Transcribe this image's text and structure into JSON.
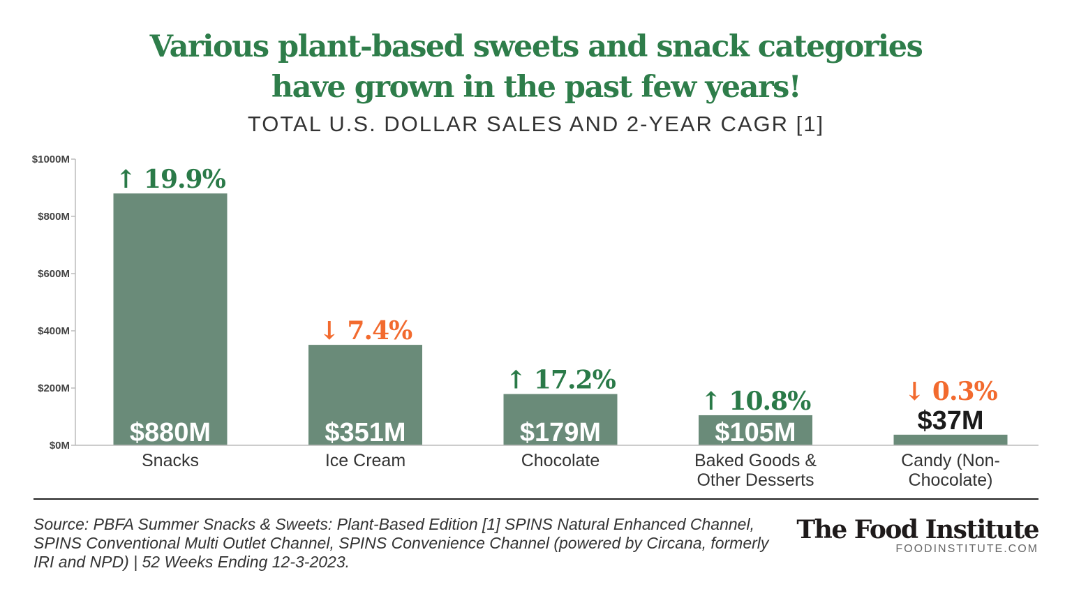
{
  "header": {
    "title_line1": "Various plant-based sweets and snack categories",
    "title_line2": "have grown in the past few years!",
    "subtitle": "TOTAL U.S. DOLLAR SALES AND 2-YEAR CAGR [1]"
  },
  "chart_data": {
    "type": "bar",
    "title": "Various plant-based sweets and snack categories have grown in the past few years!",
    "subtitle": "TOTAL U.S. DOLLAR SALES AND 2-YEAR CAGR [1]",
    "categories": [
      [
        "Snacks"
      ],
      [
        "Ice Cream"
      ],
      [
        "Chocolate"
      ],
      [
        "Baked Goods &",
        "Other Desserts"
      ],
      [
        "Candy (Non-",
        "Chocolate)"
      ]
    ],
    "values": [
      880,
      351,
      179,
      105,
      37
    ],
    "value_labels": [
      "$880M",
      "$351M",
      "$179M",
      "$105M",
      "$37M"
    ],
    "cagr": [
      {
        "direction": "up",
        "label": "↑ 19.9%"
      },
      {
        "direction": "down",
        "label": "↓ 7.4%"
      },
      {
        "direction": "up",
        "label": "↑ 17.2%"
      },
      {
        "direction": "up",
        "label": "↑ 10.8%"
      },
      {
        "direction": "down",
        "label": "↓ 0.3%"
      }
    ],
    "yticks": [
      0,
      200,
      400,
      600,
      800,
      1000
    ],
    "ytick_labels": [
      "$0M",
      "$200M",
      "$400M",
      "$600M",
      "$800M",
      "$1000M"
    ],
    "ylim": [
      0,
      1000
    ],
    "grid": false,
    "colors": {
      "bar": "#6a8b79",
      "up": "#2a7a48",
      "down": "#f26a2e",
      "inside_label": "#ffffff",
      "outside_label": "#1a1a1a"
    }
  },
  "footer": {
    "source": "Source: PBFA Summer Snacks & Sweets: Plant-Based Edition [1] SPINS Natural Enhanced Channel, SPINS Conventional Multi Outlet Channel, SPINS Convenience Channel (powered by Circana, formerly IRI and NPD) | 52 Weeks Ending 12-3-2023.",
    "logo_name": "The Food Institute",
    "logo_url": "FOODINSTITUTE.COM"
  }
}
